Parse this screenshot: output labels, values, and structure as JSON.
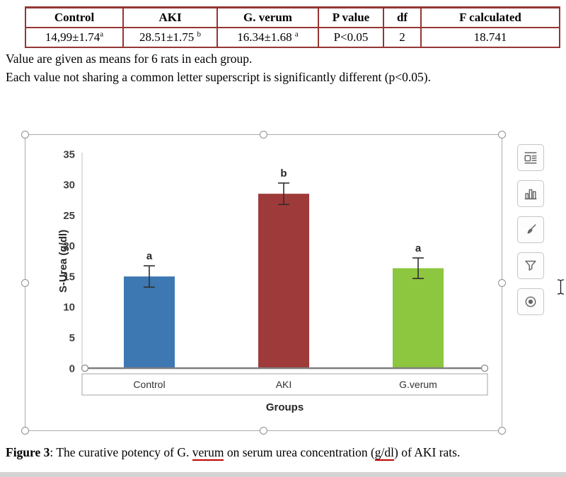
{
  "table": {
    "headers": [
      "Control",
      "AKI",
      "G. verum",
      "P value",
      "df",
      "F calculated"
    ],
    "row": [
      {
        "value": "14,99±1.74",
        "sup": "a"
      },
      {
        "value": "28.51±1.75",
        "sup": "b"
      },
      {
        "value": "16.34±1.68",
        "sup": "a"
      },
      {
        "value": "P<0.05",
        "sup": ""
      },
      {
        "value": "2",
        "sup": ""
      },
      {
        "value": "18.741",
        "sup": ""
      }
    ],
    "border_color": "#943634"
  },
  "notes": {
    "line1": "Value are given as means for 6 rats in each group.",
    "line2": "Each value not sharing a common letter superscript is significantly different (p<0.05)."
  },
  "chart_data": {
    "type": "bar",
    "title": "",
    "categories": [
      "Control",
      "AKI",
      "G.verum"
    ],
    "values": [
      14.99,
      28.51,
      16.34
    ],
    "errors": [
      1.74,
      1.75,
      1.68
    ],
    "bar_letters": [
      "a",
      "b",
      "a"
    ],
    "bar_colors": [
      "#3d78b3",
      "#9e3a39",
      "#8dc63f"
    ],
    "xlabel": "Groups",
    "ylabel": "S-Urea (g/dl)",
    "ylim": [
      0,
      35
    ],
    "yticks": [
      0,
      5,
      10,
      15,
      20,
      25,
      30,
      35
    ],
    "grid": false,
    "legend": "none"
  },
  "chart_tools": {
    "icons": [
      "layout-options-icon",
      "bar-chart-icon",
      "brush-icon",
      "filter-icon",
      "settings-icon"
    ]
  },
  "caption": {
    "bold": "Figure 3",
    "sep": ": ",
    "part1": "The curative potency of G. ",
    "underline1": "verum",
    "part2": " on serum urea concentration (",
    "underline2": "g/dl",
    "part3": ") of AKI rats."
  }
}
